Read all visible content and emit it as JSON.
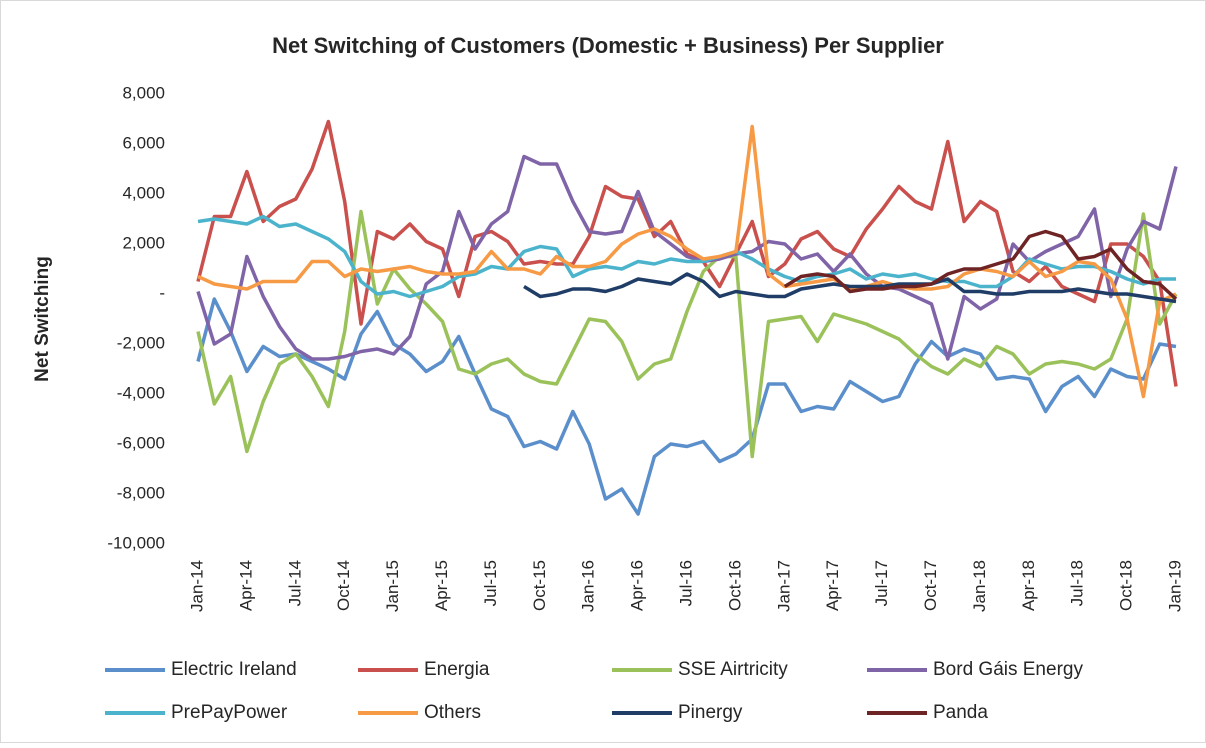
{
  "chart_data": {
    "type": "line",
    "title": "Net Switching of Customers (Domestic + Business) Per Supplier",
    "y_label": "Net Switching",
    "categories": [
      "Jan-14",
      null,
      null,
      "Apr-14",
      null,
      null,
      "Jul-14",
      null,
      null,
      "Oct-14",
      null,
      null,
      "Jan-15",
      null,
      null,
      "Apr-15",
      null,
      null,
      "Jul-15",
      null,
      null,
      "Oct-15",
      null,
      null,
      "Jan-16",
      null,
      null,
      "Apr-16",
      null,
      null,
      "Jul-16",
      null,
      null,
      "Oct-16",
      null,
      null,
      "Jan-17",
      null,
      null,
      "Apr-17",
      null,
      null,
      "Jul-17",
      null,
      null,
      "Oct-17",
      null,
      null,
      "Jan-18",
      null,
      null,
      "Apr-18",
      null,
      null,
      "Jul-18",
      null,
      null,
      "Oct-18",
      null,
      null,
      "Jan-19"
    ],
    "ylim": [
      -10000,
      8000
    ],
    "yticks": [
      {
        "value": -10000,
        "label": "-10,000"
      },
      {
        "value": -8000,
        "label": "-8,000"
      },
      {
        "value": -6000,
        "label": "-6,000"
      },
      {
        "value": -4000,
        "label": "-4,000"
      },
      {
        "value": -2000,
        "label": "-2,000"
      },
      {
        "value": 0,
        "label": "-"
      },
      {
        "value": 2000,
        "label": "2,000"
      },
      {
        "value": 4000,
        "label": "4,000"
      },
      {
        "value": 6000,
        "label": "6,000"
      },
      {
        "value": 8000,
        "label": "8,000"
      }
    ],
    "grid": false,
    "legend": "bottom",
    "series": [
      {
        "name": "Electric Ireland",
        "color": "#5b8fcb",
        "values": [
          -2700,
          -200,
          -1500,
          -3100,
          -2100,
          -2500,
          -2400,
          -2700,
          -3000,
          -3400,
          -1600,
          -700,
          -2000,
          -2400,
          -3100,
          -2700,
          -1700,
          -3200,
          -4600,
          -4900,
          -6100,
          -5900,
          -6200,
          -4700,
          -6000,
          -8200,
          -7800,
          -8800,
          -6500,
          -6000,
          -6100,
          -5900,
          -6700,
          -6400,
          -5800,
          -3600,
          -3600,
          -4700,
          -4500,
          -4600,
          -3500,
          -3900,
          -4300,
          -4100,
          -2800,
          -1900,
          -2500,
          -2200,
          -2400,
          -3400,
          -3300,
          -3400,
          -4700,
          -3700,
          -3300,
          -4100,
          -3000,
          -3300,
          -3400,
          -2000,
          -2100
        ]
      },
      {
        "name": "Energia",
        "color": "#c9504d",
        "values": [
          500,
          3100,
          3100,
          4900,
          2900,
          3500,
          3800,
          5000,
          6900,
          3700,
          -1200,
          2500,
          2200,
          2800,
          2100,
          1800,
          -100,
          2300,
          2500,
          2100,
          1200,
          1300,
          1200,
          1200,
          2300,
          4300,
          3900,
          3800,
          2300,
          2900,
          1600,
          1300,
          300,
          1600,
          2900,
          700,
          1200,
          2200,
          2500,
          1800,
          1500,
          2600,
          3400,
          4300,
          3700,
          3400,
          6100,
          2900,
          3700,
          3300,
          900,
          500,
          1100,
          300,
          0,
          -300,
          2000,
          2000,
          1500,
          500,
          -3700
        ]
      },
      {
        "name": "SSE Airtricity",
        "color": "#9bc25a",
        "values": [
          -1500,
          -4400,
          -3300,
          -6300,
          -4300,
          -2800,
          -2400,
          -3300,
          -4500,
          -1500,
          3300,
          -400,
          1000,
          200,
          -400,
          -1100,
          -3000,
          -3200,
          -2800,
          -2600,
          -3200,
          -3500,
          -3600,
          -2300,
          -1000,
          -1100,
          -1900,
          -3400,
          -2800,
          -2600,
          -700,
          900,
          1500,
          1500,
          -6500,
          -1100,
          -1000,
          -900,
          -1900,
          -800,
          -1000,
          -1200,
          -1500,
          -1800,
          -2400,
          -2900,
          -3200,
          -2600,
          -2900,
          -2100,
          -2400,
          -3200,
          -2800,
          -2700,
          -2800,
          -3000,
          -2600,
          -1000,
          3200,
          -1200,
          0
        ]
      },
      {
        "name": "Bord Gáis Energy",
        "color": "#8064a8",
        "values": [
          100,
          -2000,
          -1600,
          1500,
          -100,
          -1300,
          -2200,
          -2600,
          -2600,
          -2500,
          -2300,
          -2200,
          -2400,
          -1700,
          400,
          900,
          3300,
          1800,
          2800,
          3300,
          5500,
          5200,
          5200,
          3700,
          2500,
          2400,
          2500,
          4100,
          2500,
          2000,
          1500,
          1300,
          1400,
          1600,
          1700,
          2100,
          2000,
          1400,
          1600,
          900,
          1600,
          800,
          300,
          200,
          -100,
          -400,
          -2600,
          -100,
          -600,
          -200,
          2000,
          1300,
          1700,
          2000,
          2300,
          3400,
          -100,
          1800,
          2900,
          2600,
          5100
        ]
      },
      {
        "name": "PrePayPower",
        "color": "#4bb4cc",
        "values": [
          2900,
          3000,
          2900,
          2800,
          3100,
          2700,
          2800,
          2500,
          2200,
          1700,
          500,
          0,
          100,
          -100,
          100,
          300,
          700,
          800,
          1100,
          1000,
          1700,
          1900,
          1800,
          700,
          1000,
          1100,
          1000,
          1300,
          1200,
          1400,
          1300,
          1300,
          1500,
          1700,
          1400,
          1000,
          700,
          500,
          700,
          800,
          1000,
          600,
          800,
          700,
          800,
          600,
          500,
          500,
          300,
          300,
          700,
          1400,
          1200,
          1000,
          1100,
          1100,
          900,
          600,
          400,
          600,
          600
        ]
      },
      {
        "name": "Others",
        "color": "#f79a45",
        "values": [
          700,
          400,
          300,
          200,
          500,
          500,
          500,
          1300,
          1300,
          700,
          1000,
          900,
          1000,
          1100,
          900,
          800,
          800,
          900,
          1700,
          1000,
          1000,
          800,
          1500,
          1100,
          1100,
          1300,
          2000,
          2400,
          2600,
          2300,
          1800,
          1400,
          1500,
          1700,
          6700,
          800,
          300,
          400,
          500,
          600,
          200,
          300,
          500,
          300,
          200,
          200,
          300,
          800,
          1000,
          900,
          700,
          1300,
          700,
          900,
          1300,
          1200,
          600,
          -1000,
          -4100,
          -300,
          0
        ]
      },
      {
        "name": "Pinergy",
        "color": "#1f3d66",
        "values": [
          null,
          null,
          null,
          null,
          null,
          null,
          null,
          null,
          null,
          null,
          null,
          null,
          null,
          null,
          null,
          null,
          null,
          null,
          null,
          null,
          300,
          -100,
          0,
          200,
          200,
          100,
          300,
          600,
          500,
          400,
          800,
          500,
          -100,
          100,
          0,
          -100,
          -100,
          200,
          300,
          400,
          300,
          300,
          300,
          400,
          400,
          400,
          600,
          100,
          100,
          0,
          0,
          100,
          100,
          100,
          200,
          100,
          0,
          0,
          -100,
          -200,
          -300
        ]
      },
      {
        "name": "Panda",
        "color": "#6e2424",
        "values": [
          null,
          null,
          null,
          null,
          null,
          null,
          null,
          null,
          null,
          null,
          null,
          null,
          null,
          null,
          null,
          null,
          null,
          null,
          null,
          null,
          null,
          null,
          null,
          null,
          null,
          null,
          null,
          null,
          null,
          null,
          null,
          null,
          null,
          null,
          null,
          null,
          300,
          700,
          800,
          700,
          100,
          200,
          200,
          300,
          300,
          400,
          800,
          1000,
          1000,
          1200,
          1400,
          2300,
          2500,
          2300,
          1400,
          1500,
          1800,
          1000,
          500,
          400,
          -200
        ]
      }
    ]
  }
}
